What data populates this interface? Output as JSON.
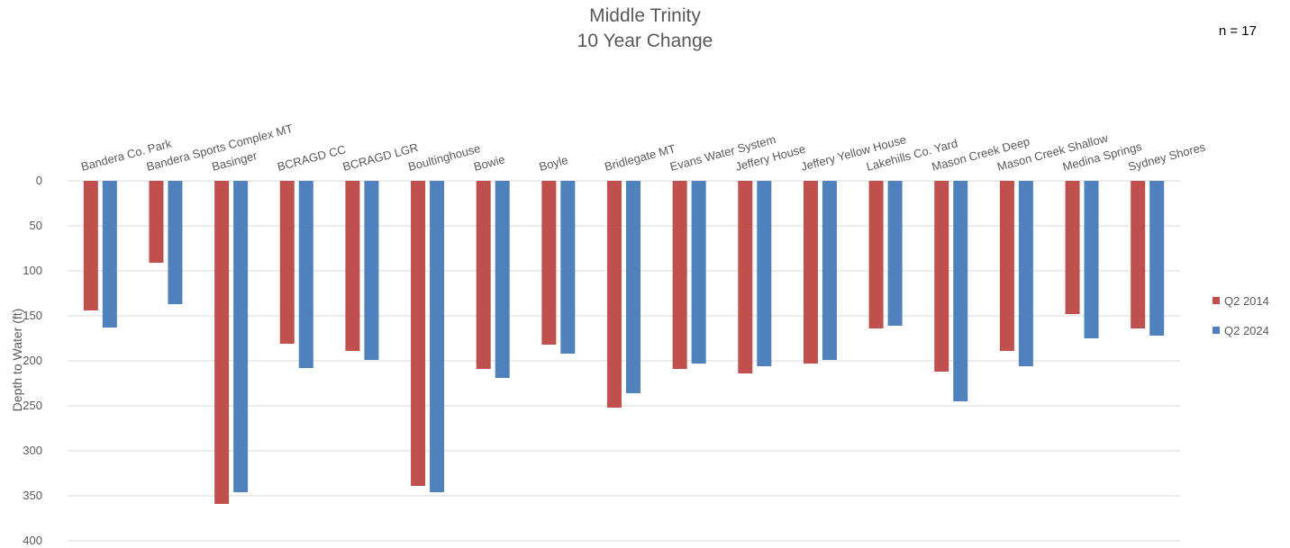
{
  "chart_data": {
    "type": "bar",
    "title": [
      "Middle Trinity",
      "10 Year Change"
    ],
    "annotation": "n = 17",
    "ylabel": "Depth to Water (ft)",
    "ylim": [
      0,
      400
    ],
    "y_inverted": true,
    "y_ticks": [
      0,
      50,
      100,
      150,
      200,
      250,
      300,
      350,
      400
    ],
    "grid": true,
    "legend_position": "right",
    "categories": [
      "Bandera Co. Park",
      "Bandera Sports Complex MT",
      "Basinger",
      "BCRAGD CC",
      "BCRAGD LGR",
      "Boultinghouse",
      "Bowie",
      "Boyle",
      "Bridlegate MT",
      "Evans Water System",
      "Jeffery House",
      "Jeffery Yellow House",
      "Lakehills Co. Yard",
      "Mason Creek Deep",
      "Mason Creek Shallow",
      "Medina Springs",
      "Sydney Shores"
    ],
    "series": [
      {
        "name": "Q2 2014",
        "color": "#c0504d",
        "values": [
          144,
          91,
          359,
          181,
          189,
          339,
          209,
          182,
          252,
          209,
          214,
          203,
          164,
          212,
          189,
          148,
          164
        ]
      },
      {
        "name": "Q2 2024",
        "color": "#4f81bd",
        "values": [
          163,
          137,
          346,
          208,
          199,
          346,
          219,
          192,
          236,
          203,
          206,
          199,
          161,
          245,
          206,
          175,
          172
        ]
      }
    ]
  }
}
